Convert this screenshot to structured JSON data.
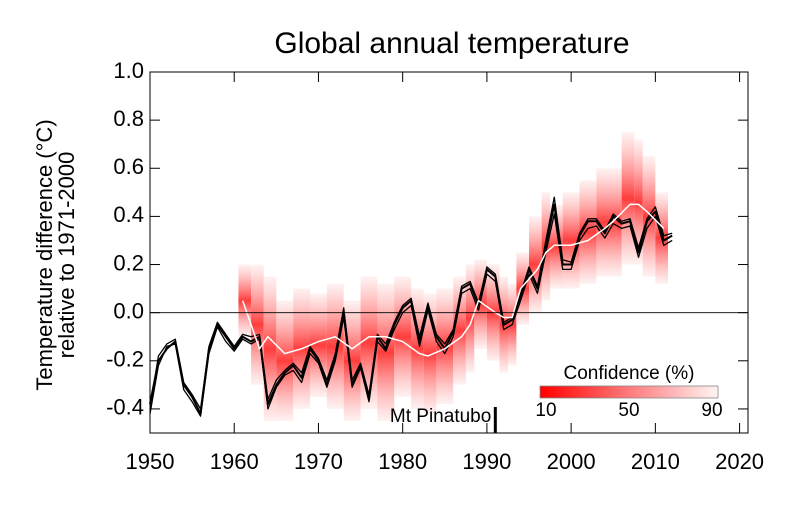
{
  "chart_data": {
    "type": "line",
    "title": "Global annual temperature",
    "ylabel": [
      "Temperature difference (°C)",
      "relative to 1971-2000"
    ],
    "xlim": [
      1950,
      2021
    ],
    "ylim": [
      -0.5,
      1.0
    ],
    "xticks": [
      1950,
      1960,
      1970,
      1980,
      1990,
      2000,
      2010,
      2020
    ],
    "yticks": [
      {
        "value": 1.0,
        "label": "1.0"
      },
      0.8,
      0.6,
      0.4,
      0.2,
      {
        "value": 0,
        "label": "0.0"
      },
      -0.2,
      -0.4
    ],
    "x": [
      1950,
      1951,
      1952,
      1953,
      1954,
      1955,
      1956,
      1957,
      1958,
      1959,
      1960,
      1961,
      1962,
      1963,
      1964,
      1965,
      1966,
      1967,
      1968,
      1969,
      1970,
      1971,
      1972,
      1973,
      1974,
      1975,
      1976,
      1977,
      1978,
      1979,
      1980,
      1981,
      1982,
      1983,
      1984,
      1985,
      1986,
      1987,
      1988,
      1989,
      1990,
      1991,
      1992,
      1993,
      1994,
      1995,
      1996,
      1997,
      1998,
      1999,
      2000,
      2001,
      2002,
      2003,
      2004,
      2005,
      2006,
      2007,
      2008,
      2009,
      2010,
      2011,
      2012
    ],
    "series": [
      {
        "color": "#000000",
        "values": [
          -0.38,
          -0.2,
          -0.15,
          -0.12,
          -0.3,
          -0.35,
          -0.42,
          -0.15,
          -0.05,
          -0.1,
          -0.15,
          -0.1,
          -0.12,
          -0.1,
          -0.38,
          -0.3,
          -0.25,
          -0.22,
          -0.27,
          -0.15,
          -0.2,
          -0.3,
          -0.18,
          0.0,
          -0.3,
          -0.22,
          -0.36,
          -0.1,
          -0.15,
          -0.05,
          0.02,
          0.05,
          -0.12,
          0.03,
          -0.1,
          -0.15,
          -0.08,
          0.1,
          0.12,
          0.03,
          0.18,
          0.15,
          -0.05,
          -0.03,
          0.07,
          0.18,
          0.1,
          0.28,
          0.45,
          0.2,
          0.2,
          0.32,
          0.38,
          0.38,
          0.33,
          0.4,
          0.37,
          0.38,
          0.25,
          0.38,
          0.42,
          0.3,
          0.32
        ]
      },
      {
        "color": "#000000",
        "values": [
          -0.42,
          -0.22,
          -0.14,
          -0.13,
          -0.32,
          -0.37,
          -0.43,
          -0.17,
          -0.06,
          -0.12,
          -0.16,
          -0.11,
          -0.13,
          -0.11,
          -0.4,
          -0.31,
          -0.26,
          -0.24,
          -0.29,
          -0.17,
          -0.21,
          -0.31,
          -0.2,
          -0.02,
          -0.31,
          -0.23,
          -0.37,
          -0.12,
          -0.16,
          -0.07,
          0.0,
          0.03,
          -0.14,
          0.01,
          -0.12,
          -0.17,
          -0.1,
          0.08,
          0.1,
          0.01,
          0.16,
          0.13,
          -0.07,
          -0.05,
          0.05,
          0.16,
          0.08,
          0.25,
          0.41,
          0.18,
          0.18,
          0.3,
          0.35,
          0.36,
          0.31,
          0.37,
          0.35,
          0.36,
          0.23,
          0.35,
          0.4,
          0.28,
          0.3
        ]
      },
      {
        "color": "#000000",
        "values": [
          -0.4,
          -0.18,
          -0.13,
          -0.11,
          -0.29,
          -0.34,
          -0.4,
          -0.14,
          -0.04,
          -0.09,
          -0.14,
          -0.09,
          -0.1,
          -0.09,
          -0.36,
          -0.28,
          -0.24,
          -0.21,
          -0.25,
          -0.14,
          -0.19,
          -0.28,
          -0.17,
          0.02,
          -0.28,
          -0.21,
          -0.34,
          -0.09,
          -0.13,
          -0.04,
          0.03,
          0.06,
          -0.1,
          0.04,
          -0.09,
          -0.13,
          -0.07,
          0.11,
          0.13,
          0.04,
          0.19,
          0.16,
          -0.04,
          -0.02,
          0.08,
          0.19,
          0.11,
          0.3,
          0.48,
          0.22,
          0.21,
          0.33,
          0.39,
          0.39,
          0.34,
          0.41,
          0.38,
          0.39,
          0.27,
          0.39,
          0.44,
          0.32,
          0.33
        ]
      }
    ],
    "forecast": {
      "color": "#ffffff",
      "x": [
        1961,
        1963,
        1964,
        1966,
        1968,
        1970,
        1972,
        1974,
        1976,
        1978,
        1980,
        1982,
        1983,
        1985,
        1987,
        1988,
        1989,
        1991,
        1992,
        1993,
        1994,
        1996,
        1997,
        1998,
        2000,
        2002,
        2004,
        2005,
        2007,
        2008,
        2009,
        2011
      ],
      "values": [
        0.05,
        -0.15,
        -0.1,
        -0.17,
        -0.15,
        -0.12,
        -0.1,
        -0.15,
        -0.1,
        -0.1,
        -0.12,
        -0.17,
        -0.18,
        -0.15,
        -0.1,
        -0.05,
        0.05,
        0.0,
        -0.02,
        -0.02,
        0.1,
        0.18,
        0.25,
        0.28,
        0.28,
        0.3,
        0.35,
        0.38,
        0.45,
        0.45,
        0.42,
        0.35
      ],
      "upper": [
        0.2,
        0.2,
        0.15,
        0.05,
        0.1,
        0.08,
        0.12,
        0.05,
        0.15,
        0.12,
        0.15,
        0.1,
        0.08,
        0.1,
        0.15,
        0.2,
        0.22,
        0.2,
        0.15,
        0.12,
        0.25,
        0.4,
        0.5,
        0.45,
        0.5,
        0.55,
        0.6,
        0.6,
        0.75,
        0.72,
        0.65,
        0.5
      ],
      "lower": [
        -0.1,
        -0.3,
        -0.45,
        -0.45,
        -0.4,
        -0.35,
        -0.4,
        -0.45,
        -0.4,
        -0.45,
        -0.35,
        -0.4,
        -0.42,
        -0.38,
        -0.3,
        -0.25,
        -0.15,
        -0.2,
        -0.25,
        -0.22,
        -0.05,
        0.0,
        0.05,
        0.1,
        0.1,
        0.12,
        0.15,
        0.15,
        0.2,
        0.2,
        0.15,
        0.12
      ]
    },
    "colorbar": {
      "title": "Confidence (%)",
      "ticks": [
        10,
        50,
        90
      ]
    },
    "annotation": {
      "text": "Mt Pinatubo",
      "x": 1991
    }
  }
}
